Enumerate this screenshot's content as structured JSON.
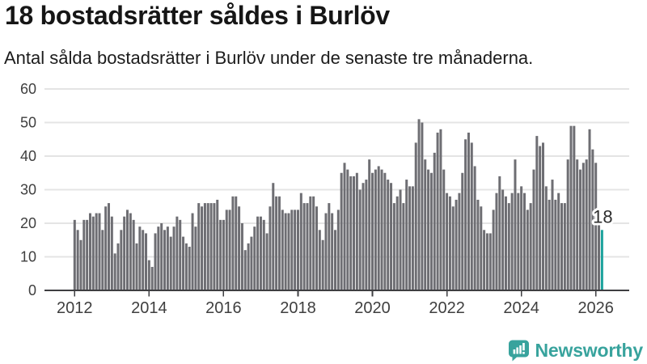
{
  "header": {
    "title": "18 bostadsrätter såldes i Burlöv",
    "subtitle": "Antal sålda bostadsrätter i Burlöv under de senaste tre månaderna."
  },
  "chart_data": {
    "type": "bar",
    "x_unit": "month",
    "x_start": "2012-01",
    "x_tick_labels": [
      "2012",
      "2014",
      "2016",
      "2018",
      "2020",
      "2022",
      "2024",
      "2026"
    ],
    "y_ticks": [
      0,
      10,
      20,
      30,
      40,
      50,
      60
    ],
    "ylim": [
      0,
      60
    ],
    "grid": true,
    "values": [
      21,
      18,
      15,
      21,
      21,
      23,
      22,
      23,
      23,
      18,
      25,
      26,
      22,
      11,
      14,
      18,
      22,
      24,
      23,
      21,
      14,
      19,
      18,
      17,
      9,
      7,
      17,
      19,
      20,
      18,
      19,
      16,
      19,
      22,
      21,
      16,
      14,
      13,
      23,
      19,
      26,
      25,
      26,
      26,
      26,
      26,
      27,
      21,
      21,
      24,
      24,
      28,
      28,
      25,
      20,
      12,
      14,
      16,
      19,
      22,
      22,
      21,
      17,
      25,
      32,
      28,
      28,
      24,
      23,
      23,
      24,
      24,
      24,
      29,
      26,
      26,
      28,
      28,
      25,
      18,
      15,
      23,
      26,
      23,
      18,
      24,
      35,
      38,
      36,
      34,
      34,
      35,
      30,
      32,
      33,
      39,
      35,
      36,
      37,
      36,
      35,
      33,
      32,
      26,
      28,
      30,
      26,
      33,
      31,
      31,
      44,
      51,
      50,
      39,
      36,
      35,
      41,
      47,
      48,
      36,
      29,
      28,
      25,
      27,
      29,
      35,
      45,
      47,
      44,
      37,
      27,
      25,
      18,
      17,
      17,
      24,
      29,
      34,
      30,
      28,
      26,
      29,
      39,
      29,
      31,
      29,
      24,
      26,
      36,
      46,
      43,
      44,
      31,
      27,
      33,
      27,
      29,
      26,
      26,
      39,
      49,
      49,
      39,
      36,
      38,
      39,
      48,
      42,
      38,
      21,
      18
    ],
    "highlight_last_bar": true,
    "annotation_label": "18",
    "annotation_value": 18,
    "colors": {
      "bar": "#6e6e73",
      "highlight": "#1ba29c",
      "grid": "#e4e4e4",
      "axis": "#3e3e41",
      "tick_text": "#3f3f3f",
      "annotation_text": "#2e2e2e"
    }
  },
  "branding": {
    "logo_text": "Newsworthy",
    "logo_color": "#38a39d"
  }
}
